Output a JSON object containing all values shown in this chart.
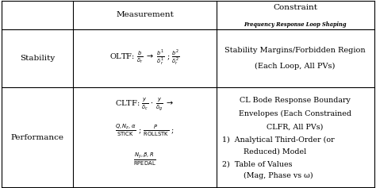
{
  "bg_color": "#ffffff",
  "border_color": "#000000",
  "c0": 0.005,
  "c1": 0.195,
  "c2": 0.575,
  "c3": 0.995,
  "r0": 0.995,
  "r1": 0.845,
  "r2": 0.535,
  "r3": 0.005,
  "header_col2": "Measurement",
  "header_col3_l1": "Constraint",
  "header_col3_l2": "Frequency Response Loop Shaping",
  "stab_col1": "Stability",
  "stab_col2": "OLTF: $\\frac{b}{\\delta_r}$ $\\rightarrow$ $\\frac{b^1}{\\delta_r^1}$ ; $\\frac{b^2}{\\delta_r^2}$",
  "stab_col3_l1": "Stability Margins/Forbidden Region",
  "stab_col3_l2": "(Each Loop, All PVs)",
  "perf_col1": "Performance",
  "perf_col2_l1": "CLTF: $\\frac{y}{\\delta_c}$ $\\cdot$ $\\frac{y}{\\delta_g}$ $\\rightarrow$",
  "perf_col2_l2": "$\\frac{Q, N_z, \\alpha}{\\mathrm{STICK}}$ ; $\\frac{P}{\\mathrm{ROLLSTK}}$ ;",
  "perf_col2_l3": "$\\frac{N_y, \\beta, R}{\\mathrm{RPEDAL}}$",
  "perf_col3_l1": "CL Bode Response Boundary",
  "perf_col3_l2": "Envelopes (Each Constrained",
  "perf_col3_l3": "CLFR, All PVs)",
  "perf_col3_l4": "1)  Analytical Third-Order (or",
  "perf_col3_l5": "      Reduced) Model",
  "perf_col3_l6": "2)  Table of Values",
  "perf_col3_l7": "      (Mag, Phase vs ω)"
}
